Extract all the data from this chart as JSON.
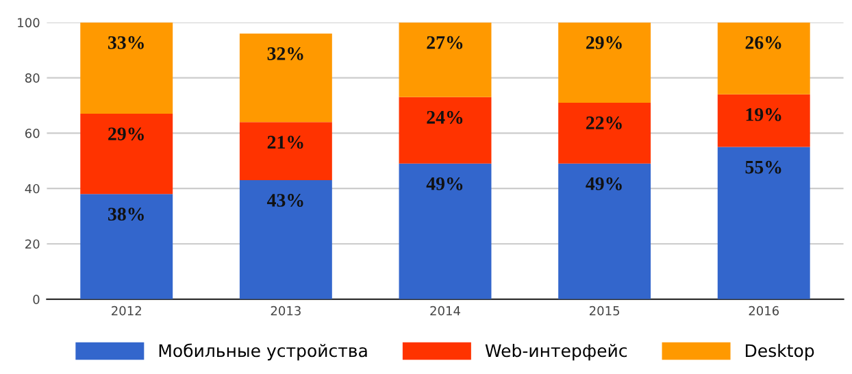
{
  "chart_data": {
    "type": "bar",
    "stacked": true,
    "categories": [
      "2012",
      "2013",
      "2014",
      "2015",
      "2016"
    ],
    "series": [
      {
        "name": "Мобильные устройства",
        "color": "#3366cc",
        "values": [
          38,
          43,
          49,
          49,
          55
        ],
        "value_labels": [
          "38%",
          "43%",
          "49%",
          "49%",
          "55%"
        ]
      },
      {
        "name": "Web-интерфейс",
        "color": "#ff3300",
        "values": [
          29,
          21,
          24,
          22,
          19
        ],
        "value_labels": [
          "29%",
          "21%",
          "24%",
          "22%",
          "19%"
        ]
      },
      {
        "name": "Desktop",
        "color": "#ff9900",
        "values": [
          33,
          32,
          27,
          29,
          26
        ],
        "value_labels": [
          "33%",
          "32%",
          "27%",
          "29%",
          "26%"
        ]
      }
    ],
    "ylim": [
      0,
      100
    ],
    "yticks": [
      0,
      20,
      40,
      60,
      80,
      100
    ],
    "grid": "y",
    "legend": "bottom"
  }
}
